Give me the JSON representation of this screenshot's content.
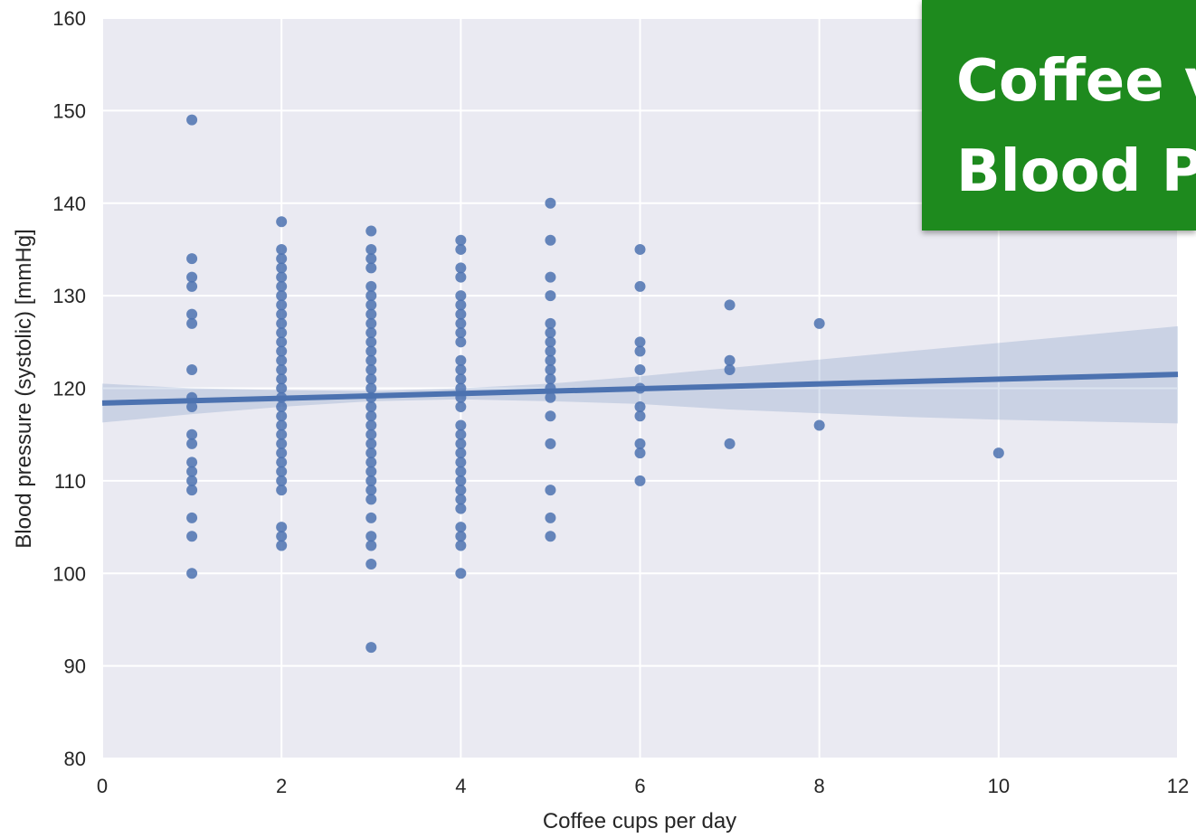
{
  "banner": {
    "line1": "Coffee v",
    "line2": "Blood P",
    "color": "#1e8a1e"
  },
  "chart_data": {
    "type": "scatter",
    "xlabel": "Coffee cups per day",
    "ylabel": "Blood pressure (systolic) [mmHg]",
    "xlim": [
      0,
      12
    ],
    "ylim": [
      80,
      160
    ],
    "xticks": [
      0,
      2,
      4,
      6,
      8,
      10,
      12
    ],
    "yticks": [
      80,
      90,
      100,
      110,
      120,
      130,
      140,
      150,
      160
    ],
    "grid": true,
    "background": "#eaeaf2",
    "point_color": "#4c72b0",
    "points": [
      [
        1,
        149
      ],
      [
        1,
        134
      ],
      [
        1,
        132
      ],
      [
        1,
        131
      ],
      [
        1,
        128
      ],
      [
        1,
        127
      ],
      [
        1,
        122
      ],
      [
        1,
        119
      ],
      [
        1,
        118
      ],
      [
        1,
        115
      ],
      [
        1,
        114
      ],
      [
        1,
        112
      ],
      [
        1,
        111
      ],
      [
        1,
        110
      ],
      [
        1,
        109
      ],
      [
        1,
        106
      ],
      [
        1,
        104
      ],
      [
        1,
        100
      ],
      [
        2,
        138
      ],
      [
        2,
        135
      ],
      [
        2,
        134
      ],
      [
        2,
        133
      ],
      [
        2,
        132
      ],
      [
        2,
        131
      ],
      [
        2,
        130
      ],
      [
        2,
        129
      ],
      [
        2,
        128
      ],
      [
        2,
        127
      ],
      [
        2,
        126
      ],
      [
        2,
        125
      ],
      [
        2,
        124
      ],
      [
        2,
        123
      ],
      [
        2,
        122
      ],
      [
        2,
        121
      ],
      [
        2,
        120
      ],
      [
        2,
        119
      ],
      [
        2,
        118
      ],
      [
        2,
        117
      ],
      [
        2,
        116
      ],
      [
        2,
        115
      ],
      [
        2,
        114
      ],
      [
        2,
        113
      ],
      [
        2,
        112
      ],
      [
        2,
        111
      ],
      [
        2,
        110
      ],
      [
        2,
        109
      ],
      [
        2,
        105
      ],
      [
        2,
        104
      ],
      [
        2,
        103
      ],
      [
        3,
        137
      ],
      [
        3,
        135
      ],
      [
        3,
        134
      ],
      [
        3,
        133
      ],
      [
        3,
        131
      ],
      [
        3,
        130
      ],
      [
        3,
        129
      ],
      [
        3,
        128
      ],
      [
        3,
        127
      ],
      [
        3,
        126
      ],
      [
        3,
        125
      ],
      [
        3,
        124
      ],
      [
        3,
        123
      ],
      [
        3,
        122
      ],
      [
        3,
        121
      ],
      [
        3,
        120
      ],
      [
        3,
        119
      ],
      [
        3,
        118
      ],
      [
        3,
        117
      ],
      [
        3,
        116
      ],
      [
        3,
        115
      ],
      [
        3,
        114
      ],
      [
        3,
        113
      ],
      [
        3,
        112
      ],
      [
        3,
        111
      ],
      [
        3,
        110
      ],
      [
        3,
        109
      ],
      [
        3,
        108
      ],
      [
        3,
        106
      ],
      [
        3,
        104
      ],
      [
        3,
        103
      ],
      [
        3,
        101
      ],
      [
        3,
        92
      ],
      [
        4,
        136
      ],
      [
        4,
        135
      ],
      [
        4,
        133
      ],
      [
        4,
        132
      ],
      [
        4,
        130
      ],
      [
        4,
        129
      ],
      [
        4,
        128
      ],
      [
        4,
        127
      ],
      [
        4,
        126
      ],
      [
        4,
        125
      ],
      [
        4,
        123
      ],
      [
        4,
        122
      ],
      [
        4,
        121
      ],
      [
        4,
        120
      ],
      [
        4,
        119
      ],
      [
        4,
        118
      ],
      [
        4,
        116
      ],
      [
        4,
        115
      ],
      [
        4,
        114
      ],
      [
        4,
        113
      ],
      [
        4,
        112
      ],
      [
        4,
        111
      ],
      [
        4,
        110
      ],
      [
        4,
        109
      ],
      [
        4,
        108
      ],
      [
        4,
        107
      ],
      [
        4,
        105
      ],
      [
        4,
        104
      ],
      [
        4,
        103
      ],
      [
        4,
        100
      ],
      [
        5,
        140
      ],
      [
        5,
        136
      ],
      [
        5,
        132
      ],
      [
        5,
        130
      ],
      [
        5,
        127
      ],
      [
        5,
        126
      ],
      [
        5,
        125
      ],
      [
        5,
        124
      ],
      [
        5,
        123
      ],
      [
        5,
        122
      ],
      [
        5,
        121
      ],
      [
        5,
        120
      ],
      [
        5,
        119
      ],
      [
        5,
        117
      ],
      [
        5,
        114
      ],
      [
        5,
        109
      ],
      [
        5,
        106
      ],
      [
        5,
        104
      ],
      [
        6,
        135
      ],
      [
        6,
        131
      ],
      [
        6,
        125
      ],
      [
        6,
        124
      ],
      [
        6,
        122
      ],
      [
        6,
        120
      ],
      [
        6,
        118
      ],
      [
        6,
        117
      ],
      [
        6,
        114
      ],
      [
        6,
        113
      ],
      [
        6,
        110
      ],
      [
        7,
        129
      ],
      [
        7,
        123
      ],
      [
        7,
        122
      ],
      [
        7,
        114
      ],
      [
        8,
        127
      ],
      [
        8,
        116
      ],
      [
        10,
        113
      ]
    ],
    "regression": {
      "x": [
        0,
        12
      ],
      "y": [
        118.4,
        121.5
      ],
      "ci_x": [
        0,
        1,
        2,
        3,
        4,
        5,
        6,
        7,
        8,
        9,
        10,
        11,
        12
      ],
      "ci_upper": [
        120.5,
        120.0,
        119.8,
        119.7,
        120.0,
        120.5,
        121.3,
        122.2,
        123.1,
        124.0,
        124.9,
        125.8,
        126.7
      ],
      "ci_lower": [
        116.3,
        117.2,
        118.0,
        118.6,
        118.8,
        118.6,
        118.3,
        117.7,
        117.3,
        116.9,
        116.6,
        116.4,
        116.2
      ]
    }
  }
}
